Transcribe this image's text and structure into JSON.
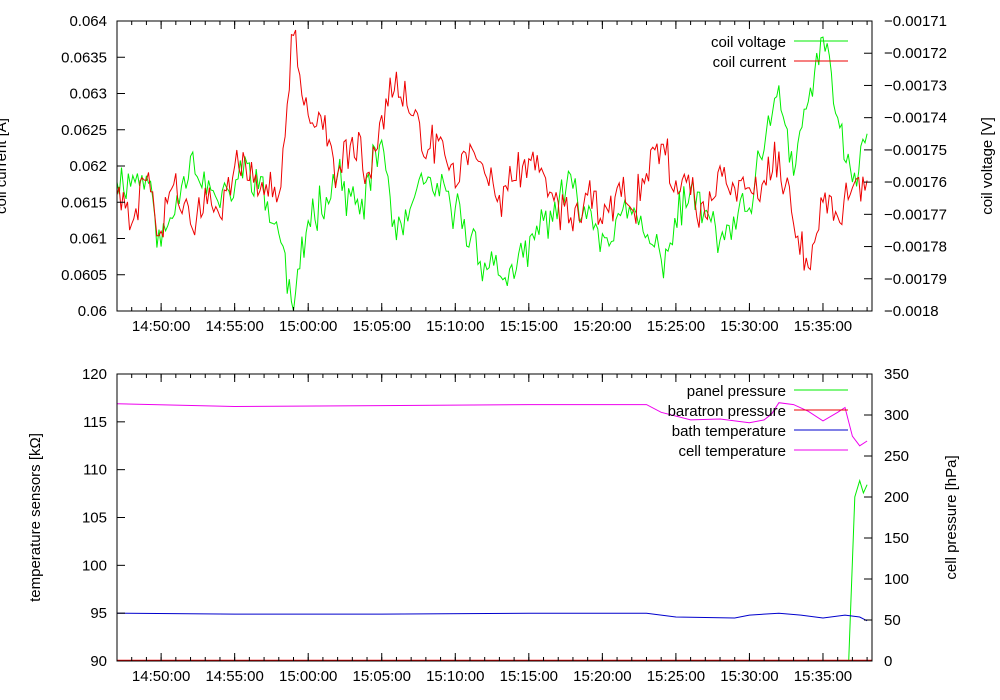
{
  "chart_data": [
    {
      "type": "line",
      "xlim": [
        "14:47:00",
        "15:38:20"
      ],
      "x_ticks": [
        "14:50:00",
        "14:55:00",
        "15:00:00",
        "15:05:00",
        "15:10:00",
        "15:15:00",
        "15:20:00",
        "15:25:00",
        "15:30:00",
        "15:35:00"
      ],
      "ylabel": "coil current [A]",
      "ylim": [
        0.06,
        0.064
      ],
      "y_ticks": [
        "0.06",
        "0.0605",
        "0.061",
        "0.0615",
        "0.062",
        "0.0625",
        "0.063",
        "0.0635",
        "0.064"
      ],
      "y2label": "coil voltage [V]",
      "y2lim": [
        -0.0018,
        -0.00171
      ],
      "y2_ticks": [
        "-0.0018",
        "-0.00179",
        "-0.00178",
        "-0.00177",
        "-0.00176",
        "-0.00175",
        "-0.00174",
        "-0.00173",
        "-0.00172",
        "-0.00171"
      ],
      "legend": "top-right",
      "series": [
        {
          "name": "coil voltage",
          "axis": "right",
          "color": "#00ee00",
          "points": [
            [
              "14:47:00",
              -0.00176
            ],
            [
              "14:49:00",
              -0.001758
            ],
            [
              "14:50:00",
              -0.00178
            ],
            [
              "14:52:00",
              -0.001752
            ],
            [
              "14:54:00",
              -0.001768
            ],
            [
              "14:56:00",
              -0.001754
            ],
            [
              "14:58:00",
              -0.001776
            ],
            [
              "14:59:00",
              -0.0018
            ],
            [
              "15:00:00",
              -0.001772
            ],
            [
              "15:02:00",
              -0.001758
            ],
            [
              "15:03:30",
              -0.00177
            ],
            [
              "15:05:00",
              -0.001747
            ],
            [
              "15:06:00",
              -0.001778
            ],
            [
              "15:08:00",
              -0.00176
            ],
            [
              "15:10:00",
              -0.001768
            ],
            [
              "15:12:00",
              -0.001785
            ],
            [
              "15:14:00",
              -0.00179
            ],
            [
              "15:16:00",
              -0.001772
            ],
            [
              "15:18:00",
              -0.001762
            ],
            [
              "15:20:00",
              -0.001776
            ],
            [
              "15:22:00",
              -0.00177
            ],
            [
              "15:24:00",
              -0.001784
            ],
            [
              "15:26:00",
              -0.001762
            ],
            [
              "15:28:00",
              -0.001778
            ],
            [
              "15:30:00",
              -0.001768
            ],
            [
              "15:31:00",
              -0.00175
            ],
            [
              "15:32:00",
              -0.00173
            ],
            [
              "15:33:00",
              -0.001758
            ],
            [
              "15:34:00",
              -0.001735
            ],
            [
              "15:35:00",
              -0.001715
            ],
            [
              "15:36:00",
              -0.00174
            ],
            [
              "15:37:00",
              -0.00176
            ],
            [
              "15:38:00",
              -0.001745
            ]
          ]
        },
        {
          "name": "coil current",
          "axis": "left",
          "color": "#ee0000",
          "points": [
            [
              "14:47:00",
              0.0616
            ],
            [
              "14:48:00",
              0.0612
            ],
            [
              "14:49:00",
              0.0618
            ],
            [
              "14:50:00",
              0.0611
            ],
            [
              "14:51:00",
              0.0619
            ],
            [
              "14:52:00",
              0.0612
            ],
            [
              "14:53:00",
              0.0617
            ],
            [
              "14:54:00",
              0.0613
            ],
            [
              "14:55:00",
              0.062
            ],
            [
              "14:56:00",
              0.0618
            ],
            [
              "14:57:00",
              0.0616
            ],
            [
              "14:58:00",
              0.0616
            ],
            [
              "14:59:00",
              0.0638
            ],
            [
              "15:00:00",
              0.0627
            ],
            [
              "15:01:00",
              0.0625
            ],
            [
              "15:02:00",
              0.0619
            ],
            [
              "15:03:00",
              0.0624
            ],
            [
              "15:04:00",
              0.0619
            ],
            [
              "15:05:00",
              0.0627
            ],
            [
              "15:06:00",
              0.0633
            ],
            [
              "15:07:00",
              0.0627
            ],
            [
              "15:08:00",
              0.0621
            ],
            [
              "15:09:00",
              0.0624
            ],
            [
              "15:10:00",
              0.0617
            ],
            [
              "15:11:00",
              0.0623
            ],
            [
              "15:12:00",
              0.0619
            ],
            [
              "15:13:00",
              0.0616
            ],
            [
              "15:14:00",
              0.0618
            ],
            [
              "15:15:00",
              0.0621
            ],
            [
              "15:16:00",
              0.0619
            ],
            [
              "15:17:00",
              0.0615
            ],
            [
              "15:18:00",
              0.0611
            ],
            [
              "15:19:00",
              0.0616
            ],
            [
              "15:20:00",
              0.0612
            ],
            [
              "15:21:00",
              0.0617
            ],
            [
              "15:22:00",
              0.0614
            ],
            [
              "15:23:00",
              0.0619
            ],
            [
              "15:24:00",
              0.0623
            ],
            [
              "15:25:00",
              0.0618
            ],
            [
              "15:26:00",
              0.0616
            ],
            [
              "15:27:00",
              0.0613
            ],
            [
              "15:28:00",
              0.062
            ],
            [
              "15:29:00",
              0.0617
            ],
            [
              "15:30:00",
              0.0617
            ],
            [
              "15:31:00",
              0.0618
            ],
            [
              "15:32:00",
              0.0622
            ],
            [
              "15:33:00",
              0.0612
            ],
            [
              "15:34:00",
              0.0606
            ],
            [
              "15:35:00",
              0.0615
            ],
            [
              "15:36:00",
              0.0613
            ],
            [
              "15:37:00",
              0.0617
            ],
            [
              "15:38:00",
              0.0618
            ]
          ]
        }
      ]
    },
    {
      "type": "line",
      "xlim": [
        "14:47:00",
        "15:38:20"
      ],
      "x_ticks": [
        "14:50:00",
        "14:55:00",
        "15:00:00",
        "15:05:00",
        "15:10:00",
        "15:15:00",
        "15:20:00",
        "15:25:00",
        "15:30:00",
        "15:35:00"
      ],
      "ylabel": "temperature sensors [kΩ]",
      "ylim": [
        90,
        120
      ],
      "y_ticks": [
        "90",
        "95",
        "100",
        "105",
        "110",
        "115",
        "120"
      ],
      "y2label": "cell pressure [hPa]",
      "y2lim": [
        0,
        350
      ],
      "y2_ticks": [
        "0",
        "50",
        "100",
        "150",
        "200",
        "250",
        "300",
        "350"
      ],
      "legend": "top-right",
      "series": [
        {
          "name": "panel pressure",
          "axis": "right",
          "color": "#00ee00",
          "points": [
            [
              "14:47:00",
              0
            ],
            [
              "15:36:45",
              0
            ],
            [
              "15:37:10",
              200
            ],
            [
              "15:37:30",
              220
            ],
            [
              "15:37:45",
              205
            ],
            [
              "15:38:00",
              215
            ]
          ]
        },
        {
          "name": "baratron pressure",
          "axis": "right",
          "color": "#ee0000",
          "points": [
            [
              "14:47:00",
              1
            ],
            [
              "15:38:20",
              1
            ]
          ]
        },
        {
          "name": "bath temperature",
          "axis": "left",
          "color": "#0000cc",
          "points": [
            [
              "14:47:00",
              95.0
            ],
            [
              "14:55:00",
              94.9
            ],
            [
              "15:05:00",
              94.9
            ],
            [
              "15:15:00",
              95.0
            ],
            [
              "15:23:00",
              95.0
            ],
            [
              "15:25:00",
              94.6
            ],
            [
              "15:29:00",
              94.5
            ],
            [
              "15:30:00",
              94.8
            ],
            [
              "15:32:00",
              95.0
            ],
            [
              "15:33:30",
              94.8
            ],
            [
              "15:35:00",
              94.5
            ],
            [
              "15:36:30",
              94.8
            ],
            [
              "15:37:30",
              94.6
            ],
            [
              "15:38:00",
              94.2
            ]
          ]
        },
        {
          "name": "cell temperature",
          "axis": "left",
          "color": "#ee00ee",
          "points": [
            [
              "14:47:00",
              116.9
            ],
            [
              "14:55:00",
              116.6
            ],
            [
              "15:05:00",
              116.7
            ],
            [
              "15:15:00",
              116.8
            ],
            [
              "15:23:00",
              116.8
            ],
            [
              "15:24:00",
              116.0
            ],
            [
              "15:26:00",
              115.2
            ],
            [
              "15:28:00",
              115.3
            ],
            [
              "15:30:00",
              114.9
            ],
            [
              "15:31:00",
              115.2
            ],
            [
              "15:31:30",
              115.8
            ],
            [
              "15:32:00",
              117.0
            ],
            [
              "15:33:00",
              116.8
            ],
            [
              "15:34:00",
              116.1
            ],
            [
              "15:35:00",
              115.1
            ],
            [
              "15:36:00",
              116.0
            ],
            [
              "15:36:30",
              116.5
            ],
            [
              "15:37:00",
              113.5
            ],
            [
              "15:37:30",
              112.5
            ],
            [
              "15:38:00",
              113.0
            ]
          ]
        }
      ]
    }
  ]
}
